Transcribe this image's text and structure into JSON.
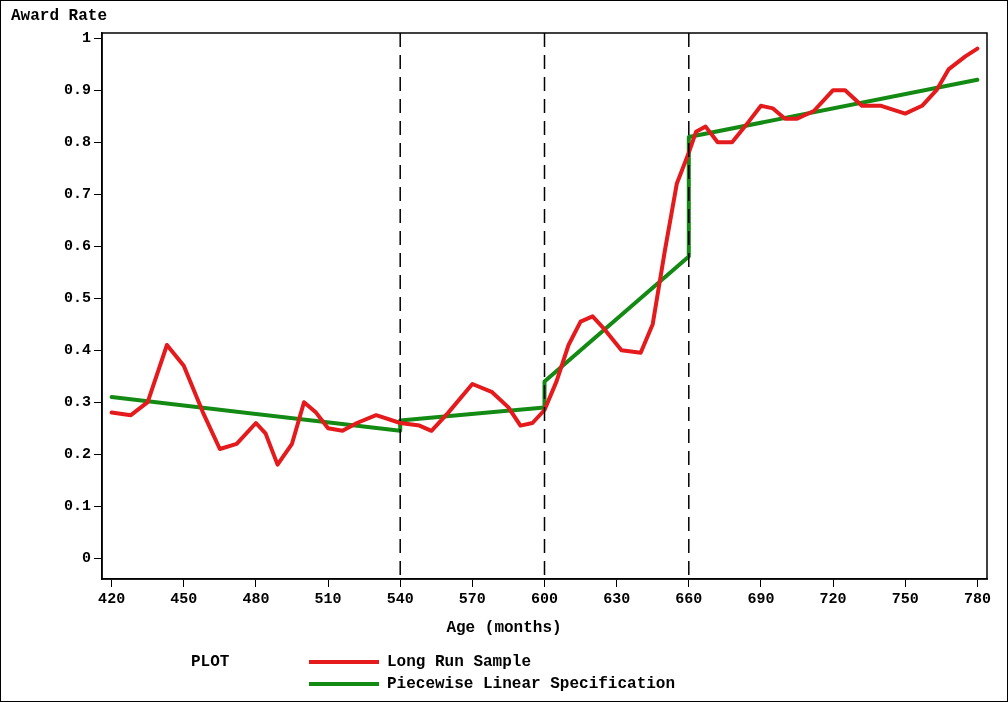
{
  "chart_data": {
    "type": "line",
    "xlabel": "Age (months)",
    "ylabel": "Award Rate",
    "legend_title": "PLOT",
    "legend": "bottom",
    "grid": false,
    "marker": "none",
    "line_style": "solid",
    "xlim": [
      416,
      784
    ],
    "xticks": [
      420,
      450,
      480,
      510,
      540,
      570,
      600,
      630,
      660,
      690,
      720,
      750,
      780
    ],
    "ylim": [
      -0.04,
      1.01
    ],
    "yticks": [
      0,
      0.1,
      0.2,
      0.3,
      0.4,
      0.5,
      0.6,
      0.7,
      0.8,
      0.9,
      1
    ],
    "ref_lines": [
      {
        "axis": "x",
        "value": 540,
        "color": "#000000",
        "line_style": "dashed"
      },
      {
        "axis": "x",
        "value": 600,
        "color": "#000000",
        "line_style": "dashed"
      },
      {
        "axis": "x",
        "value": 660,
        "color": "#000000",
        "line_style": "dashed"
      }
    ],
    "series": [
      {
        "name": "Long Run Sample",
        "color": "#e41a1c",
        "x": [
          420,
          428,
          435,
          443,
          450,
          458,
          465,
          472,
          480,
          484,
          489,
          495,
          500,
          505,
          510,
          516,
          522,
          530,
          540,
          548,
          553,
          560,
          570,
          578,
          585,
          590,
          595,
          600,
          605,
          610,
          615,
          620,
          625,
          632,
          640,
          645,
          650,
          655,
          660,
          663,
          667,
          672,
          678,
          685,
          690,
          695,
          700,
          705,
          712,
          720,
          725,
          732,
          740,
          750,
          757,
          763,
          768,
          775,
          780
        ],
        "values": [
          0.28,
          0.275,
          0.3,
          0.41,
          0.37,
          0.28,
          0.21,
          0.22,
          0.26,
          0.24,
          0.18,
          0.22,
          0.3,
          0.28,
          0.25,
          0.245,
          0.26,
          0.275,
          0.26,
          0.255,
          0.245,
          0.28,
          0.335,
          0.32,
          0.29,
          0.255,
          0.26,
          0.285,
          0.34,
          0.41,
          0.455,
          0.465,
          0.44,
          0.4,
          0.395,
          0.45,
          0.59,
          0.72,
          0.78,
          0.82,
          0.83,
          0.8,
          0.8,
          0.84,
          0.87,
          0.865,
          0.845,
          0.845,
          0.86,
          0.9,
          0.9,
          0.87,
          0.87,
          0.855,
          0.87,
          0.9,
          0.94,
          0.965,
          0.98
        ]
      },
      {
        "name": "Piecewise Linear Specification",
        "color": "#138a13",
        "x": [
          420,
          540,
          540,
          600,
          600,
          660,
          660,
          780
        ],
        "values": [
          0.31,
          0.245,
          0.265,
          0.29,
          0.34,
          0.58,
          0.81,
          0.92
        ]
      }
    ]
  }
}
